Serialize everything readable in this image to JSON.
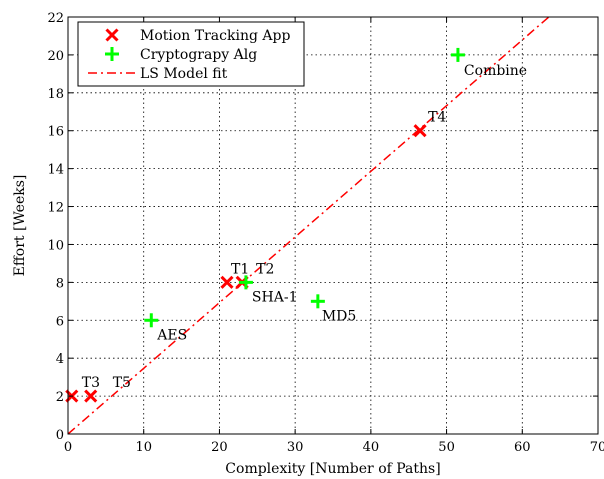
{
  "chart_data": {
    "type": "scatter",
    "xlabel": "Complexity [Number of Paths]",
    "ylabel": "Effort [Weeks]",
    "xlim": [
      0,
      70
    ],
    "ylim": [
      0,
      22
    ],
    "x_ticks": [
      0,
      10,
      20,
      30,
      40,
      50,
      60,
      70
    ],
    "y_ticks": [
      0,
      2,
      4,
      6,
      8,
      10,
      12,
      14,
      16,
      18,
      20,
      22
    ],
    "grid": true,
    "grid_style": "dotted",
    "legend_position": "top-left",
    "series": [
      {
        "name": "Motion Tracking App",
        "marker": "x",
        "color": "#ff0000",
        "points": [
          {
            "label": "T3",
            "x": 0.5,
            "y": 2
          },
          {
            "label": "T5",
            "x": 3,
            "y": 2
          },
          {
            "label": "T1",
            "x": 21,
            "y": 8
          },
          {
            "label": "T2",
            "x": 23,
            "y": 8
          },
          {
            "label": "T4",
            "x": 46.5,
            "y": 16
          }
        ]
      },
      {
        "name": "Cryptograpy Alg",
        "marker": "+",
        "color": "#00ff00",
        "points": [
          {
            "label": "AES",
            "x": 11,
            "y": 6
          },
          {
            "label": "SHA-1",
            "x": 23.5,
            "y": 8
          },
          {
            "label": "MD5",
            "x": 33,
            "y": 7
          },
          {
            "label": "Combine",
            "x": 51.5,
            "y": 20
          }
        ]
      },
      {
        "name": "LS Model fit",
        "type": "line",
        "style": "dash-dot",
        "color": "#ff0000",
        "x": [
          0,
          63.5
        ],
        "y": [
          0,
          22
        ]
      }
    ]
  }
}
